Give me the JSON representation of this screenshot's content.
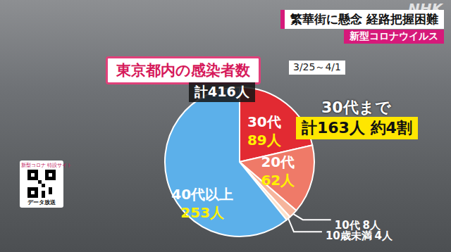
{
  "header": {
    "headline": "繁華街に懸念 経路把握困難",
    "topic": "新型コロナウイルス",
    "logo": "NHK",
    "qr_caption": "新型コロナ 特設サイト",
    "qr_label": "データ放送"
  },
  "chart_data": {
    "type": "pie",
    "title": "東京都内の感染者数",
    "subtitle": "3/25～4/1",
    "annotations": [
      "計416人",
      "30代まで",
      "計163人 約4割"
    ],
    "categories": [
      "30代",
      "20代",
      "10代",
      "10歳未満",
      "40代以上"
    ],
    "values": [
      89,
      62,
      8,
      4,
      253
    ],
    "value_labels": [
      "89人",
      "62人",
      "8人",
      "4人",
      "253人"
    ],
    "colors": [
      "#e22a32",
      "#ef7a68",
      "#f6b59c",
      "#fde3cc",
      "#5cb0ea"
    ],
    "data_labels": true
  }
}
